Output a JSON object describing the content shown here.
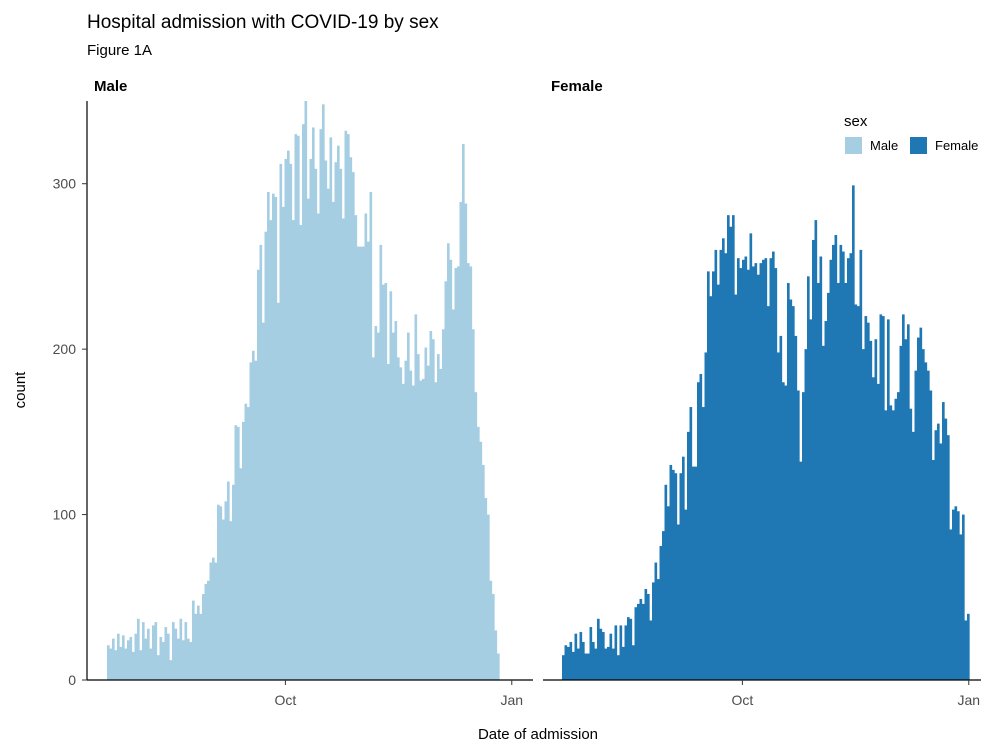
{
  "chart_data": {
    "type": "bar",
    "title": "Hospital admission with COVID-19 by sex",
    "subtitle": "Figure 1A",
    "xlabel": "Date of admission",
    "ylabel": "count",
    "ylim": [
      0,
      350
    ],
    "y_ticks": [
      0,
      100,
      200,
      300
    ],
    "x_ticks": [
      {
        "label": "Oct",
        "day": 79
      },
      {
        "label": "Jan",
        "day": 171
      }
    ],
    "x_range_days": [
      0,
      178
    ],
    "legend": {
      "title": "sex",
      "position": "top-right"
    },
    "panels": [
      {
        "label": "Male",
        "series": "Male"
      },
      {
        "label": "Female",
        "series": "Female"
      }
    ],
    "series": [
      {
        "name": "Male",
        "color": "#a6cee3",
        "values": [
          21,
          19,
          25,
          18,
          28,
          20,
          27,
          19,
          24,
          26,
          17,
          28,
          37,
          18,
          35,
          25,
          31,
          19,
          33,
          35,
          15,
          26,
          23,
          32,
          28,
          12,
          35,
          31,
          25,
          37,
          24,
          35,
          25,
          23,
          48,
          40,
          45,
          40,
          52,
          58,
          60,
          71,
          74,
          71,
          106,
          105,
          97,
          108,
          120,
          96,
          118,
          154,
          153,
          128,
          156,
          167,
          165,
          192,
          199,
          193,
          248,
          263,
          216,
          271,
          295,
          278,
          294,
          292,
          228,
          312,
          286,
          315,
          320,
          312,
          278,
          330,
          329,
          275,
          336,
          350,
          291,
          315,
          334,
          309,
          282,
          333,
          348,
          314,
          297,
          328,
          289,
          313,
          323,
          309,
          279,
          332,
          330,
          316,
          307,
          281,
          262,
          262,
          262,
          282,
          265,
          295,
          195,
          214,
          210,
          263,
          239,
          240,
          191,
          235,
          210,
          217,
          195,
          189,
          179,
          193,
          210,
          187,
          178,
          221,
          197,
          181,
          182,
          201,
          190,
          211,
          206,
          180,
          197,
          188,
          212,
          241,
          264,
          254,
          224,
          249,
          250,
          289,
          324,
          288,
          252,
          250,
          212,
          174,
          153,
          144,
          130,
          110,
          100,
          60,
          52,
          30,
          16
        ]
      },
      {
        "name": "Female",
        "color": "#1f78b4",
        "values": [
          15,
          21,
          20,
          23,
          17,
          28,
          19,
          29,
          23,
          16,
          16,
          32,
          23,
          19,
          37,
          31,
          29,
          19,
          20,
          28,
          19,
          33,
          15,
          33,
          20,
          33,
          38,
          37,
          21,
          44,
          46,
          49,
          46,
          55,
          52,
          36,
          59,
          71,
          61,
          81,
          90,
          118,
          105,
          130,
          127,
          125,
          94,
          125,
          135,
          103,
          150,
          165,
          129,
          129,
          180,
          185,
          165,
          198,
          247,
          232,
          247,
          260,
          239,
          260,
          267,
          258,
          281,
          274,
          281,
          233,
          255,
          249,
          254,
          256,
          248,
          270,
          250,
          252,
          245,
          252,
          254,
          255,
          226,
          255,
          259,
          249,
          198,
          208,
          180,
          178,
          240,
          230,
          226,
          208,
          175,
          132,
          174,
          200,
          244,
          218,
          266,
          278,
          240,
          256,
          202,
          217,
          234,
          254,
          263,
          269,
          240,
          263,
          259,
          240,
          255,
          258,
          299,
          227,
          226,
          260,
          200,
          220,
          216,
          205,
          183,
          206,
          179,
          221,
          220,
          163,
          218,
          166,
          163,
          170,
          174,
          202,
          221,
          206,
          215,
          164,
          150,
          187,
          207,
          213,
          200,
          192,
          187,
          175,
          133,
          151,
          155,
          143,
          168,
          158,
          148,
          91,
          103,
          105,
          102,
          88,
          100,
          36,
          40
        ]
      }
    ]
  }
}
